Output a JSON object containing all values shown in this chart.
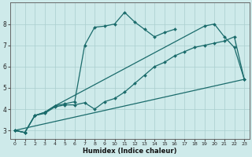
{
  "xlabel": "Humidex (Indice chaleur)",
  "bg_color": "#ceeaea",
  "line_color": "#1a6b6b",
  "grid_color": "#aacece",
  "xlim": [
    -0.5,
    23.5
  ],
  "ylim": [
    2.6,
    9.0
  ],
  "xticks": [
    0,
    1,
    2,
    3,
    4,
    5,
    6,
    7,
    8,
    9,
    10,
    11,
    12,
    13,
    14,
    15,
    16,
    17,
    18,
    19,
    20,
    21,
    22,
    23
  ],
  "yticks": [
    3,
    4,
    5,
    6,
    7,
    8
  ],
  "series": [
    {
      "x": [
        0,
        1,
        2,
        3,
        4,
        5,
        6,
        7,
        8,
        9,
        10,
        11,
        12,
        13,
        14,
        15,
        16,
        17,
        18,
        19,
        20,
        21,
        22,
        23
      ],
      "y": [
        3.0,
        2.9,
        3.7,
        3.8,
        4.1,
        4.2,
        4.2,
        4.3,
        4.0,
        4.35,
        4.5,
        4.8,
        5.2,
        5.6,
        6.0,
        6.2,
        6.5,
        6.7,
        6.9,
        7.0,
        7.1,
        7.2,
        7.4,
        5.4
      ],
      "marker": true,
      "lw": 0.9
    },
    {
      "x": [
        0,
        1,
        2,
        3,
        4,
        5,
        6,
        7,
        8,
        9,
        10,
        11,
        12,
        13,
        14,
        15,
        16
      ],
      "y": [
        3.0,
        2.9,
        3.7,
        3.85,
        4.15,
        4.25,
        4.35,
        7.0,
        7.85,
        7.9,
        8.0,
        8.55,
        8.1,
        7.75,
        7.4,
        7.6,
        7.75
      ],
      "marker": true,
      "lw": 0.9
    },
    {
      "x": [
        0,
        1,
        2,
        3,
        4,
        19,
        20,
        21,
        22,
        23
      ],
      "y": [
        3.0,
        2.9,
        3.7,
        3.85,
        4.15,
        7.9,
        8.0,
        7.4,
        6.9,
        5.4
      ],
      "marker": true,
      "lw": 0.9
    },
    {
      "x": [
        0,
        23
      ],
      "y": [
        3.0,
        5.4
      ],
      "marker": false,
      "lw": 0.9
    }
  ]
}
